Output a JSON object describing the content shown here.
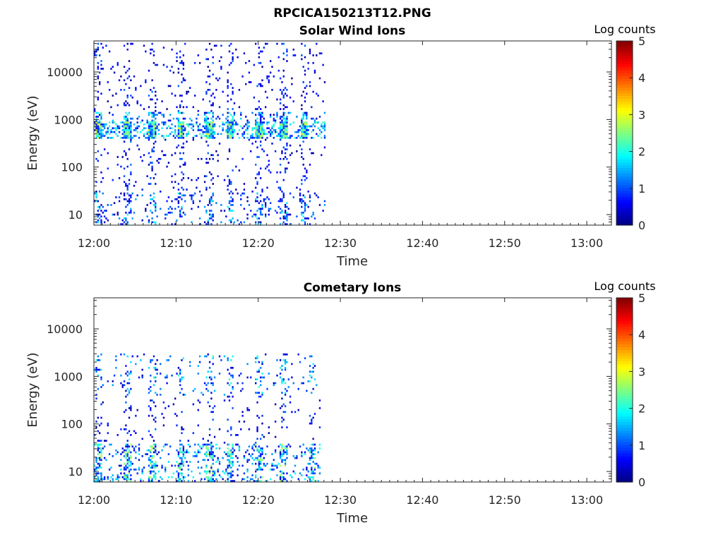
{
  "figure": {
    "title": "RPCICA150213T12.PNG"
  },
  "colormap": {
    "name": "jet",
    "stops": [
      "#00007f",
      "#0000ff",
      "#007fff",
      "#00ffff",
      "#7fff7f",
      "#ffff00",
      "#ff7f00",
      "#ff0000",
      "#7f0000"
    ]
  },
  "chart_data": [
    {
      "type": "heatmap",
      "title": "Solar Wind Ions",
      "xlabel": "Time",
      "ylabel": "Energy (eV)",
      "x_ticks": [
        "12:00",
        "12:10",
        "12:20",
        "12:30",
        "12:40",
        "12:50",
        "13:00"
      ],
      "x_range_minutes": [
        0,
        63
      ],
      "y_scale": "log",
      "y_ticks": [
        10,
        100,
        1000,
        10000
      ],
      "y_tick_labels": [
        "10",
        "100",
        "1000",
        "10000"
      ],
      "y_range": [
        6,
        45000
      ],
      "colorbar": {
        "label": "Log counts",
        "range": [
          0,
          5
        ],
        "ticks": [
          "0",
          "1",
          "2",
          "3",
          "4",
          "5"
        ]
      },
      "data_extent_minutes": [
        0,
        28
      ],
      "bands": [
        {
          "t_start": 0.0,
          "t_end": 28.0,
          "e_lo": 380,
          "e_hi": 900,
          "level_min": 0.6,
          "level_max": 3.0,
          "density": 0.55
        },
        {
          "t_start": 0.0,
          "t_end": 28.0,
          "e_lo": 900,
          "e_hi": 1500,
          "level_min": 0.3,
          "level_max": 2.3,
          "density": 0.22
        },
        {
          "t_start": 0.0,
          "t_end": 28.0,
          "e_lo": 1500,
          "e_hi": 40000,
          "level_min": 0.1,
          "level_max": 1.2,
          "density": 0.06
        },
        {
          "t_start": 0.0,
          "t_end": 28.0,
          "e_lo": 30,
          "e_hi": 380,
          "level_min": 0.1,
          "level_max": 1.2,
          "density": 0.06
        },
        {
          "t_start": 0.0,
          "t_end": 28.0,
          "e_lo": 6,
          "e_hi": 30,
          "level_min": 0.2,
          "level_max": 2.0,
          "density": 0.14
        }
      ],
      "bursts_minutes": [
        0.5,
        4.0,
        7.0,
        10.5,
        14.0,
        16.5,
        20.0,
        23.0,
        25.5
      ]
    },
    {
      "type": "heatmap",
      "title": "Cometary Ions",
      "xlabel": "Time",
      "ylabel": "Energy (eV)",
      "x_ticks": [
        "12:00",
        "12:10",
        "12:20",
        "12:30",
        "12:40",
        "12:50",
        "13:00"
      ],
      "x_range_minutes": [
        0,
        63
      ],
      "y_scale": "log",
      "y_ticks": [
        10,
        100,
        1000,
        10000
      ],
      "y_tick_labels": [
        "10",
        "100",
        "1000",
        "10000"
      ],
      "y_range": [
        6,
        45000
      ],
      "colorbar": {
        "label": "Log counts",
        "range": [
          0,
          5
        ],
        "ticks": [
          "0",
          "1",
          "2",
          "3",
          "4",
          "5"
        ]
      },
      "data_extent_minutes": [
        0,
        28
      ],
      "bands": [
        {
          "t_start": 0.0,
          "t_end": 27.5,
          "e_lo": 6,
          "e_hi": 40,
          "level_min": 0.3,
          "level_max": 2.8,
          "density": 0.22
        },
        {
          "t_start": 0.0,
          "t_end": 27.5,
          "e_lo": 40,
          "e_hi": 400,
          "level_min": 0.1,
          "level_max": 1.2,
          "density": 0.05
        },
        {
          "t_start": 0.0,
          "t_end": 27.5,
          "e_lo": 400,
          "e_hi": 3000,
          "level_min": 0.3,
          "level_max": 2.2,
          "density": 0.08
        }
      ],
      "bursts_minutes": [
        0.5,
        4.0,
        7.0,
        10.5,
        14.0,
        16.5,
        20.0,
        23.0,
        26.5
      ]
    }
  ]
}
